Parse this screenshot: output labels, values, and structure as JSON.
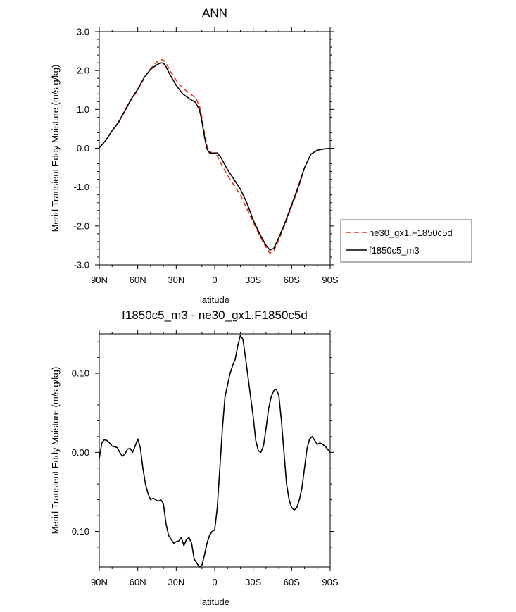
{
  "chart_data": [
    {
      "type": "line",
      "title": "ANN",
      "xlabel": "latitude",
      "ylabel": "Merid Transient Eddy Moisture (m/s g/kg)",
      "xlim": [
        -90,
        90
      ],
      "ylim": [
        -3,
        3
      ],
      "x_ticks": [
        -90,
        -60,
        -30,
        0,
        30,
        60,
        90
      ],
      "x_tick_labels": [
        "90N",
        "60N",
        "30N",
        "0",
        "30S",
        "60S",
        "90S"
      ],
      "y_ticks": [
        3,
        2,
        1,
        0,
        -1,
        -2,
        -3
      ],
      "y_tick_labels": [
        "3.0",
        "2.0",
        "1.0",
        "0.0",
        "-1.0",
        "-2.0",
        "-3.0"
      ],
      "legend": {
        "position": "right"
      },
      "series": [
        {
          "name": "ne30_gx1.F1850c5d",
          "color": "#e8321e",
          "dash": true,
          "x": [
            -90,
            -85,
            -80,
            -75,
            -70,
            -65,
            -60,
            -55,
            -50,
            -45,
            -42,
            -40,
            -38,
            -35,
            -30,
            -25,
            -20,
            -15,
            -12,
            -10,
            -8,
            -6,
            -4,
            -2,
            0,
            2,
            5,
            10,
            15,
            20,
            25,
            30,
            35,
            40,
            43,
            46,
            50,
            55,
            60,
            65,
            70,
            75,
            80,
            85,
            90
          ],
          "y": [
            0.02,
            0.2,
            0.45,
            0.65,
            0.95,
            1.25,
            1.5,
            1.8,
            2.05,
            2.22,
            2.28,
            2.27,
            2.2,
            2.0,
            1.75,
            1.55,
            1.42,
            1.3,
            1.1,
            0.8,
            0.4,
            0.05,
            -0.08,
            -0.12,
            -0.15,
            -0.2,
            -0.4,
            -0.7,
            -0.95,
            -1.2,
            -1.55,
            -1.9,
            -2.25,
            -2.55,
            -2.7,
            -2.65,
            -2.35,
            -1.95,
            -1.5,
            -1.05,
            -0.5,
            -0.15,
            -0.05,
            -0.02,
            0.0
          ]
        },
        {
          "name": "f1850c5_m3",
          "color": "#000000",
          "dash": false,
          "x": [
            -90,
            -85,
            -80,
            -75,
            -70,
            -65,
            -60,
            -55,
            -50,
            -45,
            -42,
            -40,
            -38,
            -35,
            -30,
            -25,
            -20,
            -15,
            -12,
            -10,
            -8,
            -6,
            -4,
            -2,
            0,
            2,
            5,
            10,
            15,
            20,
            25,
            30,
            35,
            40,
            43,
            46,
            50,
            55,
            60,
            65,
            70,
            75,
            80,
            85,
            90
          ],
          "y": [
            0.01,
            0.2,
            0.45,
            0.67,
            0.97,
            1.27,
            1.52,
            1.82,
            2.03,
            2.15,
            2.2,
            2.19,
            2.1,
            1.9,
            1.62,
            1.4,
            1.28,
            1.18,
            1.0,
            0.7,
            0.3,
            -0.02,
            -0.12,
            -0.13,
            -0.12,
            -0.12,
            -0.25,
            -0.55,
            -0.8,
            -1.05,
            -1.4,
            -1.85,
            -2.2,
            -2.5,
            -2.62,
            -2.58,
            -2.3,
            -1.9,
            -1.45,
            -1.0,
            -0.5,
            -0.15,
            -0.05,
            -0.02,
            0.0
          ]
        }
      ]
    },
    {
      "type": "line",
      "title": "f1850c5_m3 - ne30_gx1.F1850c5d",
      "xlabel": "latitude",
      "ylabel": "Merid Transient Eddy Moisture (m/s g/kg)",
      "xlim": [
        -90,
        90
      ],
      "ylim": [
        -0.145,
        0.15
      ],
      "x_ticks": [
        -90,
        -60,
        -30,
        0,
        30,
        60,
        90
      ],
      "x_tick_labels": [
        "90N",
        "60N",
        "30N",
        "0",
        "30S",
        "60S",
        "90S"
      ],
      "y_ticks": [
        0.1,
        0.0,
        -0.1
      ],
      "y_tick_labels": [
        "0.10",
        "0.00",
        "-0.10"
      ],
      "series": [
        {
          "color": "#000000",
          "dash": false,
          "x": [
            -90,
            -88,
            -86,
            -84,
            -82,
            -80,
            -78,
            -76,
            -74,
            -72,
            -70,
            -68,
            -66,
            -64,
            -62,
            -60,
            -58,
            -56,
            -54,
            -52,
            -50,
            -48,
            -46,
            -44,
            -42,
            -40,
            -38,
            -36,
            -34,
            -32,
            -30,
            -28,
            -26,
            -24,
            -22,
            -20,
            -18,
            -16,
            -14,
            -12,
            -10,
            -8,
            -6,
            -4,
            -2,
            0,
            2,
            4,
            6,
            8,
            10,
            12,
            14,
            16,
            18,
            20,
            22,
            24,
            26,
            28,
            30,
            32,
            34,
            36,
            38,
            40,
            42,
            44,
            46,
            48,
            50,
            52,
            54,
            56,
            58,
            60,
            62,
            64,
            66,
            68,
            70,
            72,
            74,
            76,
            78,
            80,
            82,
            84,
            86,
            88,
            90
          ],
          "y": [
            -0.008,
            0.012,
            0.016,
            0.015,
            0.012,
            0.008,
            0.007,
            0.006,
            0.0,
            -0.005,
            -0.002,
            0.004,
            0.005,
            0.0,
            0.008,
            0.017,
            0.006,
            -0.02,
            -0.04,
            -0.052,
            -0.06,
            -0.058,
            -0.06,
            -0.062,
            -0.06,
            -0.065,
            -0.09,
            -0.105,
            -0.11,
            -0.115,
            -0.113,
            -0.112,
            -0.108,
            -0.118,
            -0.11,
            -0.108,
            -0.115,
            -0.135,
            -0.14,
            -0.145,
            -0.143,
            -0.13,
            -0.115,
            -0.105,
            -0.1,
            -0.098,
            -0.07,
            -0.02,
            0.03,
            0.07,
            0.085,
            0.1,
            0.11,
            0.118,
            0.135,
            0.148,
            0.143,
            0.12,
            0.095,
            0.07,
            0.045,
            0.015,
            0.002,
            0.0,
            0.008,
            0.03,
            0.055,
            0.07,
            0.078,
            0.08,
            0.072,
            0.04,
            0.0,
            -0.04,
            -0.06,
            -0.07,
            -0.073,
            -0.07,
            -0.06,
            -0.045,
            -0.02,
            0.005,
            0.017,
            0.02,
            0.015,
            0.01,
            0.012,
            0.01,
            0.008,
            0.004,
            0.0
          ]
        }
      ]
    }
  ]
}
